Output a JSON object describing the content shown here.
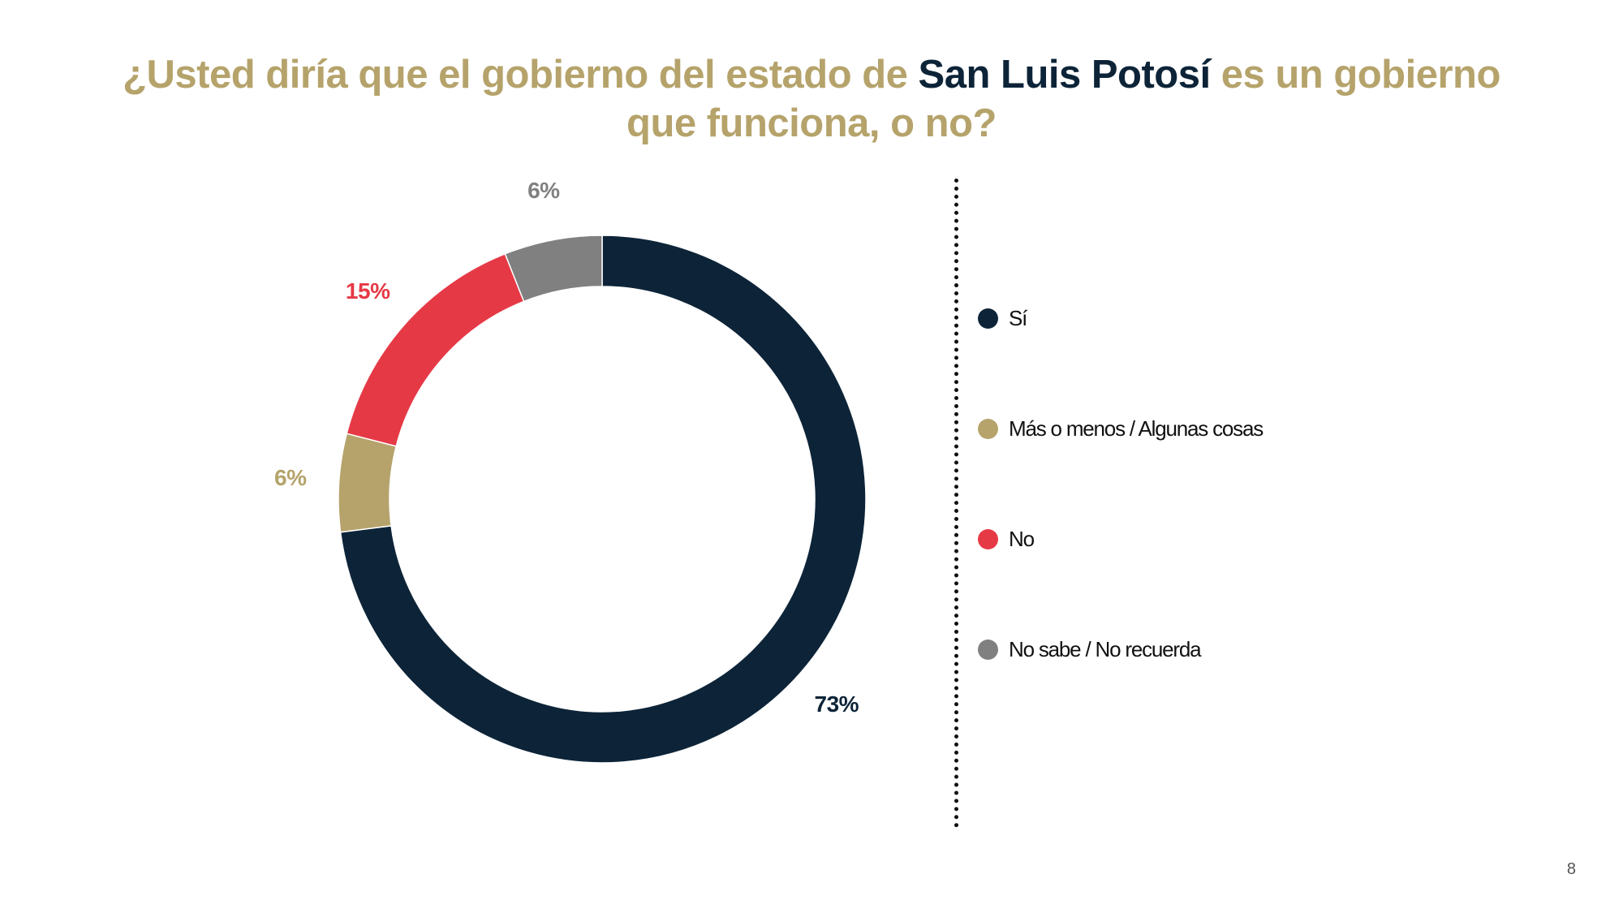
{
  "title": {
    "part1": "¿Usted diría que el gobierno del estado de ",
    "highlight": "San Luis Potosí",
    "part2": " es un gobierno que funciona, o no?"
  },
  "colors": {
    "title": "#b5a36b",
    "highlight": "#0d2438"
  },
  "chart_data": {
    "type": "pie",
    "variant": "donut",
    "title": "¿Usted diría que el gobierno del estado de San Luis Potosí es un gobierno que funciona, o no?",
    "categories": [
      "Sí",
      "Más o menos / Algunas cosas",
      "No",
      "No sabe / No recuerda"
    ],
    "values": [
      73,
      6,
      15,
      6
    ],
    "data_labels": [
      "73%",
      "6%",
      "15%",
      "6%"
    ],
    "colors": [
      "#0d2438",
      "#b5a36b",
      "#e63946",
      "#808080"
    ],
    "label_colors": [
      "#0d2438",
      "#b5a36b",
      "#e63946",
      "#808080"
    ],
    "start": "top",
    "direction": "clockwise",
    "legend_position": "right"
  },
  "legend": {
    "items": [
      {
        "label": "Sí",
        "color": "#0d2438"
      },
      {
        "label": "Más o menos / Algunas cosas",
        "color": "#b5a36b"
      },
      {
        "label": "No",
        "color": "#e63946"
      },
      {
        "label": "No sabe / No recuerda",
        "color": "#808080"
      }
    ]
  },
  "page_number": "8"
}
